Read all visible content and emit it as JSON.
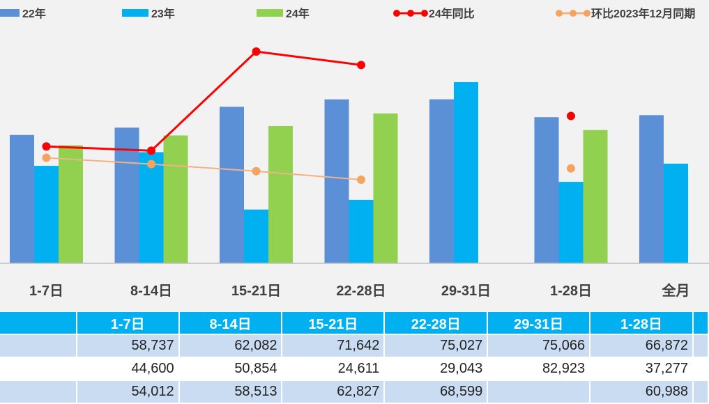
{
  "chart_data": {
    "type": "bar",
    "categories": [
      "1-7日",
      "8-14日",
      "15-21日",
      "22-28日",
      "29-31日",
      "1-28日",
      "全月"
    ],
    "series": [
      {
        "name": "22年",
        "kind": "bar",
        "color": "#5b8fd6",
        "values": [
          58737,
          62082,
          71642,
          75027,
          75066,
          66872,
          67800
        ]
      },
      {
        "name": "23年",
        "kind": "bar",
        "color": "#00b0f0",
        "values": [
          44600,
          50854,
          24611,
          29043,
          82923,
          37277,
          45600
        ]
      },
      {
        "name": "24年",
        "kind": "bar",
        "color": "#92d050",
        "values": [
          54012,
          58513,
          62827,
          68599,
          null,
          60988,
          null
        ]
      },
      {
        "name": "24年同比",
        "kind": "line",
        "color": "#ff0000",
        "values": [
          0.21,
          0.15,
          1.55,
          1.36,
          null,
          0.64,
          null
        ]
      },
      {
        "name": "环比2023年12月同期",
        "kind": "line",
        "color": "#f4b183",
        "values": [
          0.05,
          -0.04,
          -0.14,
          -0.26,
          null,
          -0.1,
          null
        ]
      }
    ],
    "ylim": [
      0,
      95000
    ]
  },
  "table": {
    "headers": [
      "",
      "1-7日",
      "8-14日",
      "15-21日",
      "22-28日",
      "29-31日",
      "1-28日",
      ""
    ],
    "rows": [
      [
        "",
        "58,737",
        "62,082",
        "71,642",
        "75,027",
        "75,066",
        "66,872",
        ""
      ],
      [
        "",
        "44,600",
        "50,854",
        "24,611",
        "29,043",
        "82,923",
        "37,277",
        ""
      ],
      [
        "",
        "54,012",
        "58,513",
        "62,827",
        "68,599",
        "",
        "60,988",
        ""
      ]
    ]
  }
}
